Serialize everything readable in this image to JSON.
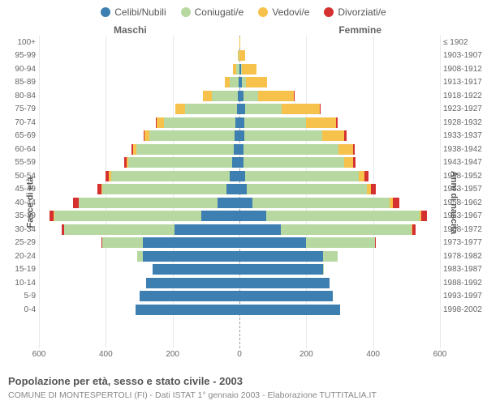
{
  "type": "population-pyramid",
  "legend": [
    {
      "label": "Celibi/Nubili",
      "color": "#3d7fb0"
    },
    {
      "label": "Coniugati/e",
      "color": "#b7d9a1"
    },
    {
      "label": "Vedovi/e",
      "color": "#f7c24b"
    },
    {
      "label": "Divorziati/e",
      "color": "#d63131"
    }
  ],
  "labels": {
    "male": "Maschi",
    "female": "Femmine",
    "age_axis": "Fasce di età",
    "year_axis": "Anni di nascita"
  },
  "title": "Popolazione per età, sesso e stato civile - 2003",
  "subtitle": "COMUNE DI MONTESPERTOLI (FI) - Dati ISTAT 1° gennaio 2003 - Elaborazione TUTTITALIA.IT",
  "x": {
    "max": 600,
    "ticks": [
      600,
      400,
      200,
      0,
      200,
      400,
      600
    ]
  },
  "colors": {
    "celibi": "#3d7fb0",
    "coniugati": "#b7d9a1",
    "vedovi": "#f7c24b",
    "divorziati": "#d63131",
    "grid": "#e8e8e8",
    "center": "#999999",
    "bg": "#ffffff"
  },
  "rows": [
    {
      "age": "100+",
      "year": "≤ 1902",
      "m": {
        "c": 0,
        "co": 0,
        "v": 1,
        "d": 0
      },
      "f": {
        "c": 0,
        "co": 0,
        "v": 2,
        "d": 0
      }
    },
    {
      "age": "95-99",
      "year": "1903-1907",
      "m": {
        "c": 1,
        "co": 1,
        "v": 3,
        "d": 0
      },
      "f": {
        "c": 1,
        "co": 0,
        "v": 16,
        "d": 0
      }
    },
    {
      "age": "90-94",
      "year": "1908-1912",
      "m": {
        "c": 1,
        "co": 9,
        "v": 9,
        "d": 0
      },
      "f": {
        "c": 4,
        "co": 3,
        "v": 45,
        "d": 0
      }
    },
    {
      "age": "85-89",
      "year": "1913-1917",
      "m": {
        "c": 2,
        "co": 28,
        "v": 13,
        "d": 0
      },
      "f": {
        "c": 7,
        "co": 12,
        "v": 64,
        "d": 0
      }
    },
    {
      "age": "80-84",
      "year": "1918-1922",
      "m": {
        "c": 5,
        "co": 78,
        "v": 26,
        "d": 1
      },
      "f": {
        "c": 12,
        "co": 45,
        "v": 105,
        "d": 1
      }
    },
    {
      "age": "75-79",
      "year": "1923-1927",
      "m": {
        "c": 8,
        "co": 155,
        "v": 28,
        "d": 0
      },
      "f": {
        "c": 16,
        "co": 110,
        "v": 115,
        "d": 2
      }
    },
    {
      "age": "70-74",
      "year": "1928-1932",
      "m": {
        "c": 12,
        "co": 215,
        "v": 22,
        "d": 2
      },
      "f": {
        "c": 15,
        "co": 185,
        "v": 90,
        "d": 4
      }
    },
    {
      "age": "65-69",
      "year": "1933-1937",
      "m": {
        "c": 14,
        "co": 255,
        "v": 15,
        "d": 3
      },
      "f": {
        "c": 14,
        "co": 235,
        "v": 65,
        "d": 6
      }
    },
    {
      "age": "60-64",
      "year": "1938-1942",
      "m": {
        "c": 18,
        "co": 290,
        "v": 10,
        "d": 4
      },
      "f": {
        "c": 12,
        "co": 285,
        "v": 42,
        "d": 6
      }
    },
    {
      "age": "55-59",
      "year": "1943-1947",
      "m": {
        "c": 22,
        "co": 310,
        "v": 6,
        "d": 6
      },
      "f": {
        "c": 13,
        "co": 300,
        "v": 26,
        "d": 8
      }
    },
    {
      "age": "50-54",
      "year": "1948-1952",
      "m": {
        "c": 30,
        "co": 355,
        "v": 5,
        "d": 10
      },
      "f": {
        "c": 16,
        "co": 340,
        "v": 18,
        "d": 12
      }
    },
    {
      "age": "45-49",
      "year": "1953-1957",
      "m": {
        "c": 40,
        "co": 370,
        "v": 3,
        "d": 12
      },
      "f": {
        "c": 22,
        "co": 360,
        "v": 12,
        "d": 15
      }
    },
    {
      "age": "40-44",
      "year": "1958-1962",
      "m": {
        "c": 65,
        "co": 415,
        "v": 2,
        "d": 16
      },
      "f": {
        "c": 40,
        "co": 410,
        "v": 8,
        "d": 20
      }
    },
    {
      "age": "35-39",
      "year": "1963-1967",
      "m": {
        "c": 115,
        "co": 440,
        "v": 1,
        "d": 12
      },
      "f": {
        "c": 80,
        "co": 460,
        "v": 4,
        "d": 18
      }
    },
    {
      "age": "30-34",
      "year": "1968-1972",
      "m": {
        "c": 195,
        "co": 330,
        "v": 0,
        "d": 7
      },
      "f": {
        "c": 125,
        "co": 390,
        "v": 2,
        "d": 10
      }
    },
    {
      "age": "25-29",
      "year": "1973-1977",
      "m": {
        "c": 290,
        "co": 120,
        "v": 0,
        "d": 2
      },
      "f": {
        "c": 200,
        "co": 205,
        "v": 0,
        "d": 4
      }
    },
    {
      "age": "20-24",
      "year": "1978-1982",
      "m": {
        "c": 290,
        "co": 15,
        "v": 0,
        "d": 0
      },
      "f": {
        "c": 250,
        "co": 45,
        "v": 0,
        "d": 0
      }
    },
    {
      "age": "15-19",
      "year": "1983-1987",
      "m": {
        "c": 260,
        "co": 0,
        "v": 0,
        "d": 0
      },
      "f": {
        "c": 250,
        "co": 2,
        "v": 0,
        "d": 0
      }
    },
    {
      "age": "10-14",
      "year": "1988-1992",
      "m": {
        "c": 280,
        "co": 0,
        "v": 0,
        "d": 0
      },
      "f": {
        "c": 270,
        "co": 0,
        "v": 0,
        "d": 0
      }
    },
    {
      "age": "5-9",
      "year": "1993-1997",
      "m": {
        "c": 300,
        "co": 0,
        "v": 0,
        "d": 0
      },
      "f": {
        "c": 280,
        "co": 0,
        "v": 0,
        "d": 0
      }
    },
    {
      "age": "0-4",
      "year": "1998-2002",
      "m": {
        "c": 310,
        "co": 0,
        "v": 0,
        "d": 0
      },
      "f": {
        "c": 300,
        "co": 0,
        "v": 0,
        "d": 0
      }
    }
  ]
}
